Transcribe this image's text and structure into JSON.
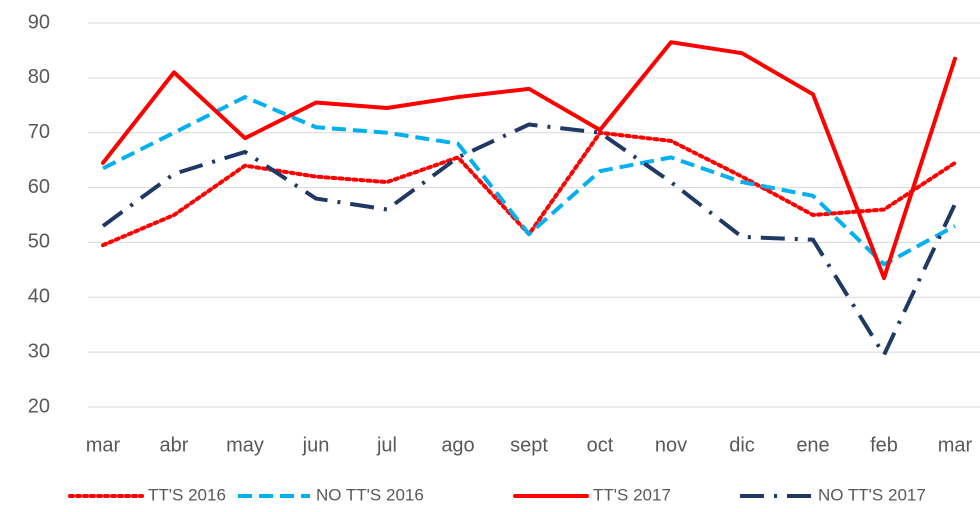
{
  "chart_data": {
    "type": "line",
    "categories": [
      "mar",
      "abr",
      "may",
      "jun",
      "jul",
      "ago",
      "sept",
      "oct",
      "nov",
      "dic",
      "ene",
      "feb",
      "mar"
    ],
    "ylim": [
      20,
      90
    ],
    "yticks": [
      20,
      30,
      40,
      50,
      60,
      70,
      80,
      90
    ],
    "grid": true,
    "legend": "bottom",
    "series": [
      {
        "name": "TT'S 2016",
        "color": "#ff0000",
        "dash": "dotted",
        "values": [
          49.5,
          55,
          64,
          62,
          61,
          65.5,
          51.5,
          70,
          68.5,
          62,
          55,
          56,
          64.5
        ]
      },
      {
        "name": "NO TT'S 2016",
        "color": "#00b0f0",
        "dash": "dashed",
        "values": [
          63.5,
          70,
          76.5,
          71,
          70,
          68,
          51.5,
          63,
          65.5,
          61,
          58.5,
          46,
          53
        ]
      },
      {
        "name": "TT'S 2017",
        "color": "#ff0000",
        "dash": "solid",
        "values": [
          64.5,
          81,
          69,
          75.5,
          74.5,
          76.5,
          78,
          70.5,
          86.5,
          84.5,
          77,
          43.5,
          83.5
        ]
      },
      {
        "name": "NO TT'S 2017",
        "color": "#1f3864",
        "dash": "dashdot",
        "values": [
          53,
          62.5,
          66.5,
          58,
          56,
          65.5,
          71.5,
          70,
          61,
          51,
          50.5,
          29.5,
          57
        ]
      }
    ]
  }
}
